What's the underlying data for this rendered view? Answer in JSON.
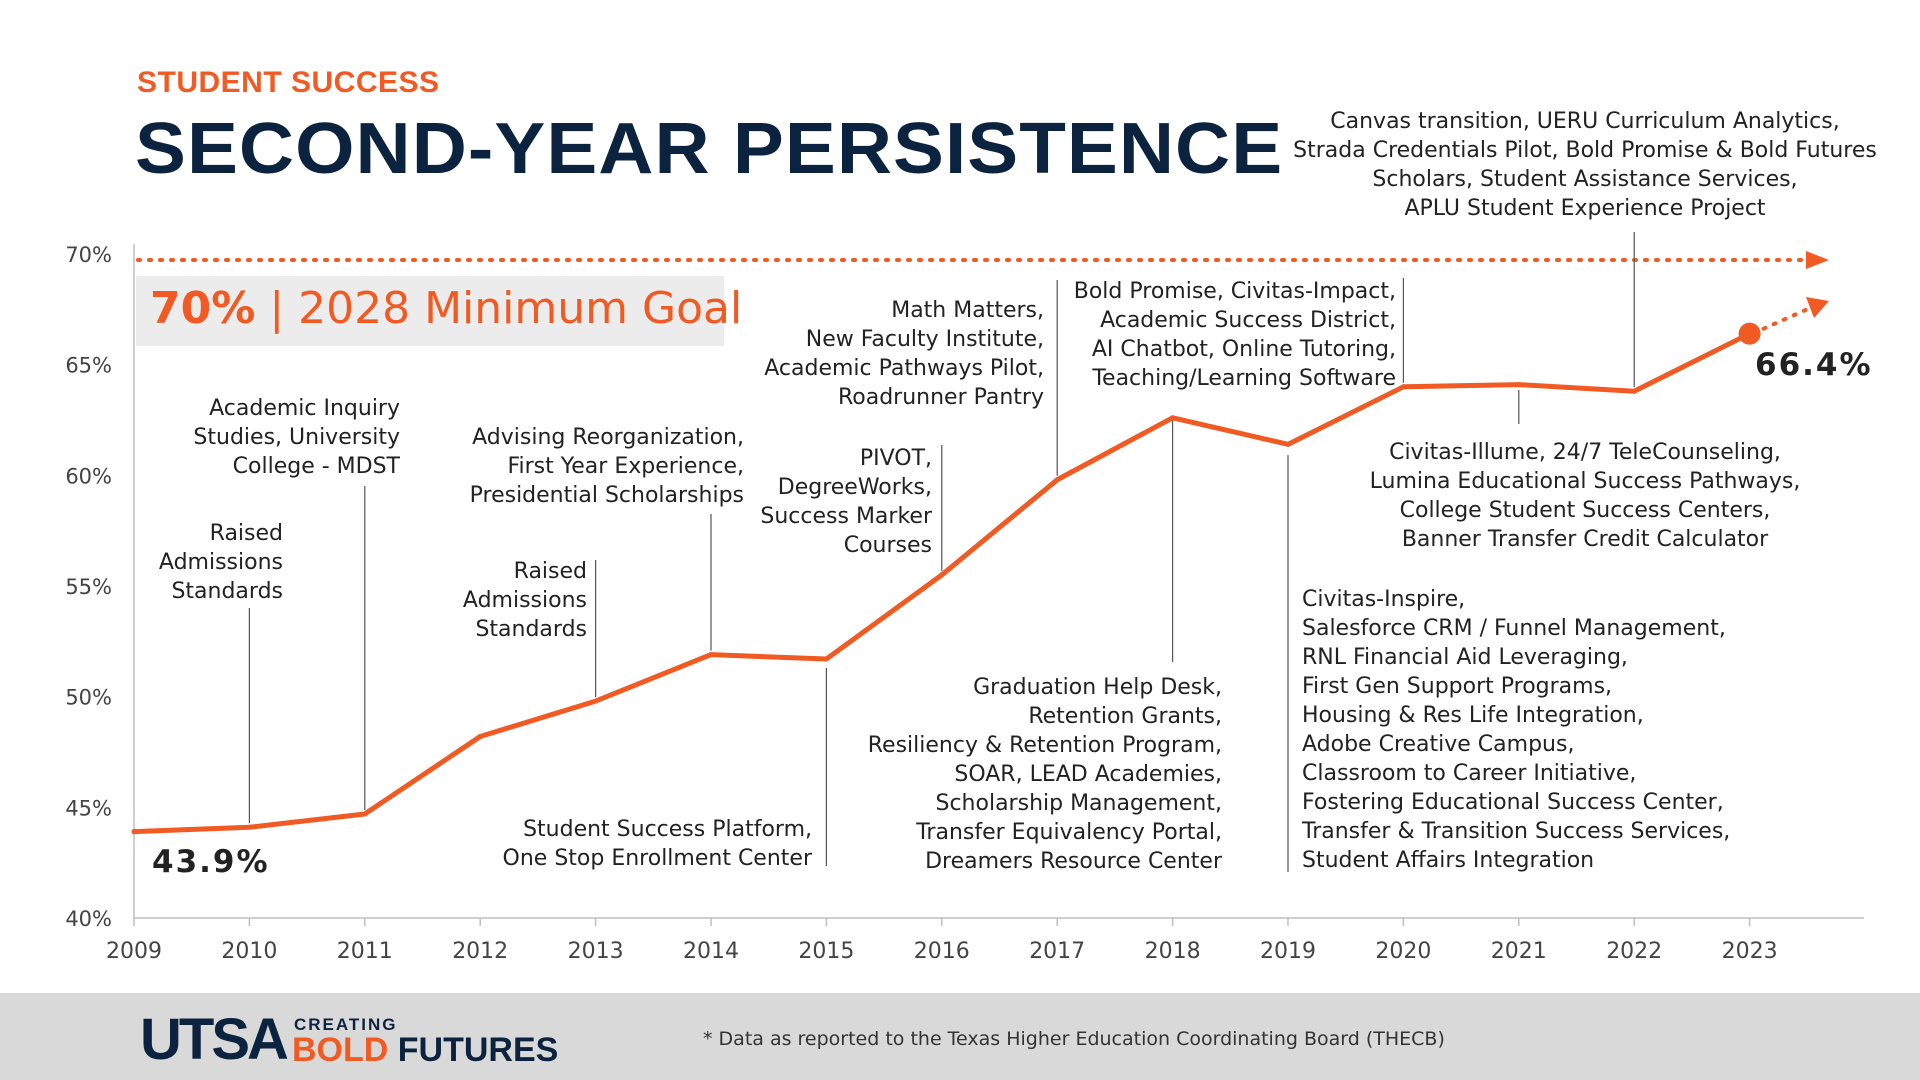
{
  "header": {
    "eyebrow": "STUDENT SUCCESS",
    "title": "SECOND-YEAR PERSISTENCE"
  },
  "goal": {
    "value": "70%",
    "separator": " | ",
    "text": "2028 Minimum Goal"
  },
  "chart_data": {
    "type": "line",
    "x": [
      2009,
      2010,
      2011,
      2012,
      2013,
      2014,
      2015,
      2016,
      2017,
      2018,
      2019,
      2020,
      2021,
      2022,
      2023
    ],
    "values": [
      43.9,
      44.1,
      44.7,
      48.2,
      49.8,
      51.9,
      51.7,
      55.5,
      59.8,
      62.6,
      61.4,
      64.0,
      64.1,
      63.8,
      66.4
    ],
    "ylim": [
      40,
      70
    ],
    "yticks": [
      "40%",
      "45%",
      "50%",
      "55%",
      "60%",
      "65%",
      "70%"
    ],
    "xticks": [
      "2009",
      "2010",
      "2011",
      "2012",
      "2013",
      "2014",
      "2015",
      "2016",
      "2017",
      "2018",
      "2019",
      "2020",
      "2021",
      "2022",
      "2023"
    ],
    "goal_line": 70,
    "start_label": "43.9%",
    "end_label": "66.4%",
    "line_color": "#f15a22",
    "annotations": [
      {
        "year": 2010,
        "lines": [
          "Raised",
          "Admissions",
          "Standards"
        ]
      },
      {
        "year": 2011,
        "lines": [
          "Academic Inquiry",
          "Studies, University",
          "College - MDST"
        ]
      },
      {
        "year": 2013,
        "lines": [
          "Raised",
          "Admissions",
          "Standards"
        ]
      },
      {
        "year": 2014,
        "lines": [
          "Advising Reorganization,",
          "First Year Experience,",
          "Presidential Scholarships"
        ]
      },
      {
        "year": 2015,
        "lines": [
          "Student Success Platform,",
          "One Stop Enrollment Center"
        ]
      },
      {
        "year": 2016,
        "lines": [
          "PIVOT,",
          "DegreeWorks,",
          "Success Marker",
          "Courses"
        ]
      },
      {
        "year": 2017,
        "lines": [
          "Math Matters,",
          "New Faculty Institute,",
          "Academic Pathways Pilot,",
          "Roadrunner Pantry"
        ]
      },
      {
        "year": 2018,
        "lines": [
          "Graduation Help Desk,",
          "Retention Grants,",
          "Resiliency & Retention Program,",
          "SOAR, LEAD Academies,",
          "Scholarship Management,",
          "Transfer Equivalency Portal,",
          "Dreamers Resource Center"
        ]
      },
      {
        "year": 2019,
        "lines": [
          "Civitas-Inspire,",
          "Salesforce CRM / Funnel Management,",
          "RNL Financial Aid Leveraging,",
          "First Gen Support Programs,",
          "Housing & Res Life Integration,",
          "Adobe Creative Campus,",
          "Classroom to Career Initiative,",
          "Fostering Educational Success Center,",
          "Transfer & Transition Success Services,",
          "Student Affairs Integration"
        ]
      },
      {
        "year": 2020,
        "lines": [
          "Bold Promise, Civitas-Impact,",
          "Academic Success District,",
          "AI Chatbot, Online Tutoring,",
          "Teaching/Learning Software"
        ]
      },
      {
        "year": 2021,
        "lines": [
          "Civitas-Illume, 24/7 TeleCounseling,",
          "Lumina Educational Success Pathways,",
          "College Student Success Centers,",
          "Banner Transfer Credit Calculator"
        ]
      },
      {
        "year": 2022,
        "lines": [
          "Canvas transition, UERU Curriculum Analytics,",
          "Strada Credentials Pilot, Bold Promise & Bold Futures",
          "Scholars, Student Assistance Services,",
          "APLU Student Experience Project"
        ]
      }
    ]
  },
  "footer": {
    "logo_main": "UTSA",
    "logo_creating": "CREATING",
    "logo_bold": "BOLD",
    "logo_futures": "FUTURES",
    "footnote": "* Data as reported to the Texas Higher Education Coordinating Board (THECB)"
  },
  "colors": {
    "accent": "#f15a22",
    "navy": "#0c2340",
    "goal_box": "#ececec",
    "footer_bg": "#d9d9d9"
  }
}
